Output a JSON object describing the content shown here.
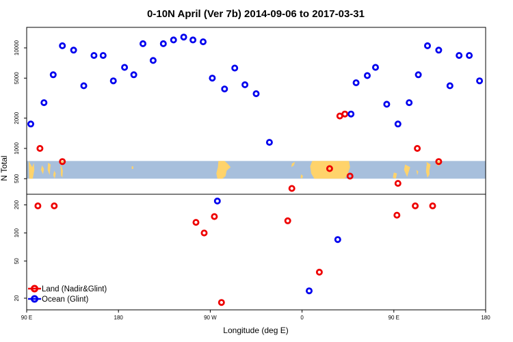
{
  "chart_data": {
    "type": "scatter",
    "title": "0-10N April (Ver 7b)   2014-09-06 to 2017-03-31",
    "xlabel": "Longitude (deg E)",
    "ylabel": "N Total",
    "y_scale": "log",
    "xlim": [
      90,
      540
    ],
    "ylim": [
      15,
      16000
    ],
    "x_ticks": [
      {
        "value": 90,
        "label": "90 E"
      },
      {
        "value": 180,
        "label": "180"
      },
      {
        "value": 270,
        "label": "90 W"
      },
      {
        "value": 360,
        "label": "0"
      },
      {
        "value": 450,
        "label": "90 E"
      },
      {
        "value": 540,
        "label": "180"
      }
    ],
    "y_ticks": [
      {
        "value": 20,
        "label": "20"
      },
      {
        "value": 50,
        "label": "50"
      },
      {
        "value": 100,
        "label": "100"
      },
      {
        "value": 200,
        "label": "200"
      },
      {
        "value": 500,
        "label": "500"
      },
      {
        "value": 1000,
        "label": "1000"
      },
      {
        "value": 2000,
        "label": "2000"
      },
      {
        "value": 5000,
        "label": "5000"
      },
      {
        "value": 10000,
        "label": "10000"
      }
    ],
    "inset_map": {
      "lat_range": [
        0,
        10
      ],
      "y_band": [
        500,
        750
      ]
    },
    "legend": {
      "position": "bottom-left"
    },
    "series": [
      {
        "name": "Land (Nadir&Glint)",
        "color": "#ee0000",
        "points": [
          {
            "x": 101,
            "y": 195
          },
          {
            "x": 103,
            "y": 1000
          },
          {
            "x": 117,
            "y": 195
          },
          {
            "x": 125,
            "y": 740
          },
          {
            "x": 256,
            "y": 130
          },
          {
            "x": 264,
            "y": 100
          },
          {
            "x": 274,
            "y": 150
          },
          {
            "x": 281,
            "y": 18
          },
          {
            "x": 346,
            "y": 135
          },
          {
            "x": 350,
            "y": 400
          },
          {
            "x": 377,
            "y": 38
          },
          {
            "x": 387,
            "y": 630
          },
          {
            "x": 397,
            "y": 2100
          },
          {
            "x": 402,
            "y": 2200
          },
          {
            "x": 407,
            "y": 530
          },
          {
            "x": 453,
            "y": 155
          },
          {
            "x": 454,
            "y": 340
          },
          {
            "x": 471,
            "y": 195
          },
          {
            "x": 473,
            "y": 1000
          },
          {
            "x": 488,
            "y": 195
          },
          {
            "x": 494,
            "y": 740
          }
        ]
      },
      {
        "name": "Ocean (Glint)",
        "color": "#0000ee",
        "points": [
          {
            "x": 94,
            "y": 1750
          },
          {
            "x": 107,
            "y": 2850
          },
          {
            "x": 116,
            "y": 5400
          },
          {
            "x": 125,
            "y": 10500
          },
          {
            "x": 136,
            "y": 9500
          },
          {
            "x": 146,
            "y": 4200
          },
          {
            "x": 156,
            "y": 8400
          },
          {
            "x": 165,
            "y": 8400
          },
          {
            "x": 175,
            "y": 4700
          },
          {
            "x": 186,
            "y": 6400
          },
          {
            "x": 195,
            "y": 5400
          },
          {
            "x": 204,
            "y": 11000
          },
          {
            "x": 214,
            "y": 7500
          },
          {
            "x": 224,
            "y": 11000
          },
          {
            "x": 234,
            "y": 12000
          },
          {
            "x": 244,
            "y": 12800
          },
          {
            "x": 253,
            "y": 12000
          },
          {
            "x": 263,
            "y": 11500
          },
          {
            "x": 272,
            "y": 5000
          },
          {
            "x": 277,
            "y": 220
          },
          {
            "x": 284,
            "y": 3900
          },
          {
            "x": 294,
            "y": 6300
          },
          {
            "x": 304,
            "y": 4300
          },
          {
            "x": 315,
            "y": 3500
          },
          {
            "x": 328,
            "y": 1150
          },
          {
            "x": 367,
            "y": 24
          },
          {
            "x": 395,
            "y": 85
          },
          {
            "x": 408,
            "y": 2200
          },
          {
            "x": 413,
            "y": 4500
          },
          {
            "x": 424,
            "y": 5300
          },
          {
            "x": 432,
            "y": 6400
          },
          {
            "x": 443,
            "y": 2750
          },
          {
            "x": 454,
            "y": 1750
          },
          {
            "x": 465,
            "y": 2850
          },
          {
            "x": 474,
            "y": 5400
          },
          {
            "x": 483,
            "y": 10500
          },
          {
            "x": 494,
            "y": 9500
          },
          {
            "x": 505,
            "y": 4200
          },
          {
            "x": 514,
            "y": 8400
          },
          {
            "x": 524,
            "y": 8400
          },
          {
            "x": 534,
            "y": 4700
          }
        ]
      }
    ]
  }
}
